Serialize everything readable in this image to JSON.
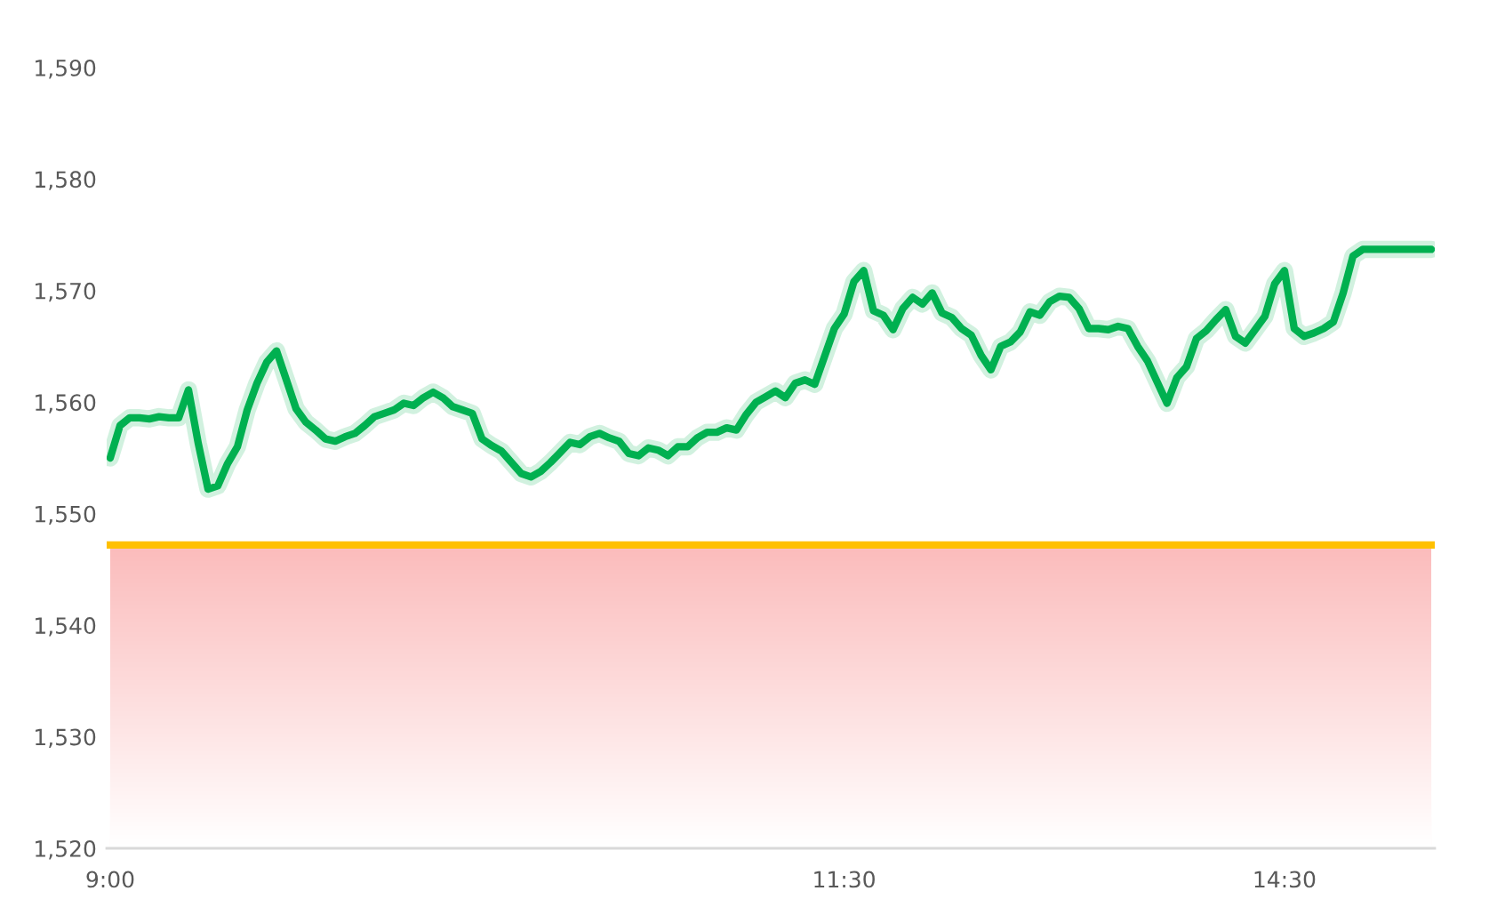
{
  "chart_data": {
    "type": "line",
    "categories": [
      "9:00",
      null,
      null,
      null,
      null,
      null,
      null,
      null,
      null,
      null,
      null,
      null,
      null,
      null,
      null,
      null,
      null,
      null,
      null,
      null,
      null,
      null,
      null,
      null,
      null,
      null,
      null,
      null,
      null,
      null,
      null,
      null,
      null,
      null,
      null,
      null,
      null,
      null,
      null,
      null,
      null,
      null,
      null,
      null,
      null,
      null,
      null,
      null,
      null,
      null,
      null,
      null,
      null,
      null,
      null,
      null,
      null,
      null,
      null,
      null,
      null,
      null,
      null,
      null,
      null,
      null,
      null,
      null,
      null,
      null,
      null,
      null,
      null,
      null,
      null,
      "11:30",
      null,
      null,
      null,
      null,
      null,
      null,
      null,
      null,
      null,
      null,
      null,
      null,
      null,
      null,
      null,
      null,
      null,
      null,
      null,
      null,
      null,
      null,
      null,
      null,
      null,
      null,
      null,
      null,
      null,
      null,
      null,
      null,
      null,
      null,
      null,
      null,
      null,
      null,
      null,
      null,
      null,
      null,
      null,
      null,
      "14:30",
      null,
      null,
      null,
      null,
      null,
      null,
      null,
      null,
      null,
      null,
      null,
      null,
      null,
      null,
      null
    ],
    "series": [
      {
        "color": "#00b050",
        "values": [
          1555.0,
          1557.9,
          1558.6,
          1558.6,
          1558.5,
          1558.7,
          1558.6,
          1558.6,
          1561.1,
          1556.3,
          1552.2,
          1552.5,
          1554.5,
          1556.0,
          1559.3,
          1561.7,
          1563.6,
          1564.6,
          1562.0,
          1559.4,
          1558.2,
          1557.5,
          1556.7,
          1556.5,
          1556.9,
          1557.2,
          1557.9,
          1558.7,
          1559.0,
          1559.3,
          1559.9,
          1559.7,
          1560.4,
          1560.9,
          1560.4,
          1559.6,
          1559.3,
          1559.0,
          1556.7,
          1556.1,
          1555.6,
          1554.6,
          1553.6,
          1553.3,
          1553.8,
          1554.6,
          1555.5,
          1556.4,
          1556.2,
          1556.9,
          1557.2,
          1556.8,
          1556.5,
          1555.4,
          1555.2,
          1555.9,
          1555.7,
          1555.2,
          1556.0,
          1556.0,
          1556.8,
          1557.3,
          1557.3,
          1557.7,
          1557.5,
          1558.9,
          1560.0,
          1560.5,
          1561.0,
          1560.4,
          1561.7,
          1562.0,
          1561.6,
          1564.1,
          1566.6,
          1567.9,
          1570.8,
          1571.8,
          1568.2,
          1567.8,
          1566.5,
          1568.4,
          1569.4,
          1568.8,
          1569.8,
          1568.0,
          1567.6,
          1566.6,
          1566.0,
          1564.2,
          1562.9,
          1565.0,
          1565.4,
          1566.3,
          1568.1,
          1567.8,
          1569.0,
          1569.5,
          1569.4,
          1568.4,
          1566.6,
          1566.6,
          1566.5,
          1566.8,
          1566.6,
          1565.0,
          1563.7,
          1561.8,
          1559.9,
          1562.2,
          1563.2,
          1565.7,
          1566.4,
          1567.4,
          1568.3,
          1565.9,
          1565.3,
          1566.5,
          1567.7,
          1570.6,
          1571.8,
          1566.6,
          1565.9,
          1566.2,
          1566.6,
          1567.2,
          1569.8,
          1573.1,
          1573.7,
          1573.7,
          1573.7,
          1573.7,
          1573.7,
          1573.7,
          1573.7,
          1573.7
        ]
      }
    ],
    "ylim": [
      1520,
      1590
    ],
    "yticks": [
      {
        "value": 1520,
        "label": "1,520"
      },
      {
        "value": 1530,
        "label": "1,530"
      },
      {
        "value": 1540,
        "label": "1,540"
      },
      {
        "value": 1550,
        "label": "1,550"
      },
      {
        "value": 1560,
        "label": "1,560"
      },
      {
        "value": 1570,
        "label": "1,570"
      },
      {
        "value": 1580,
        "label": "1,580"
      },
      {
        "value": 1590,
        "label": "1,590"
      }
    ],
    "ref_lines": [
      {
        "axis": "y",
        "value": 1547.2,
        "color": "#ffc000"
      }
    ],
    "bands": [
      {
        "axis": "y",
        "from": 1520,
        "to": 1547.2,
        "color": "#fbbcbc"
      }
    ],
    "line_style": "solid"
  }
}
